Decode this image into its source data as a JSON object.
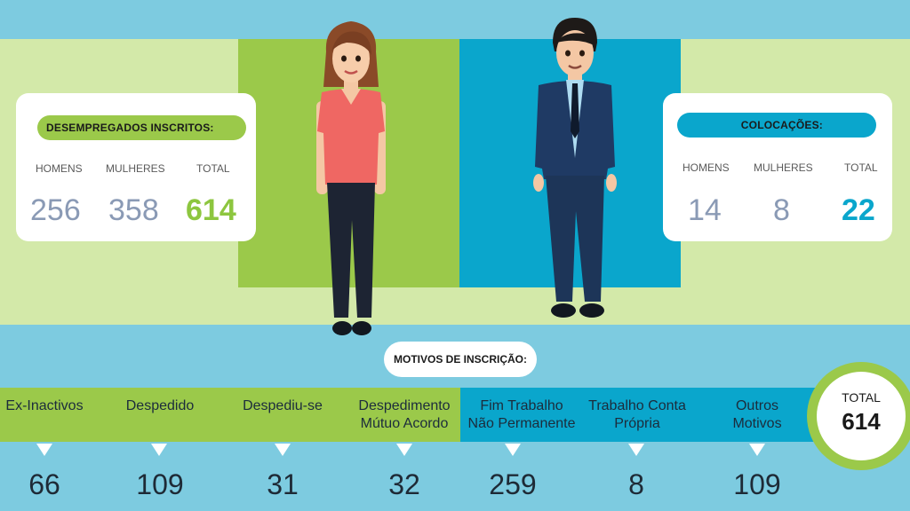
{
  "left_card": {
    "title": "DESEMPREGADOS INSCRITOS:",
    "labels": [
      "HOMENS",
      "MULHERES",
      "TOTAL"
    ],
    "values": [
      "256",
      "358",
      "614"
    ]
  },
  "right_card": {
    "title": "COLOCAÇÕES:",
    "labels": [
      "HOMENS",
      "MULHERES",
      "TOTAL"
    ],
    "values": [
      "14",
      "8",
      "22"
    ]
  },
  "motivos": {
    "title": "MOTIVOS DE INSCRIÇÃO:",
    "categories": [
      {
        "line1": "Ex-Inactivos",
        "line2": "",
        "value": "66"
      },
      {
        "line1": "Despedido",
        "line2": "",
        "value": "109"
      },
      {
        "line1": "Despediu-se",
        "line2": "",
        "value": "31"
      },
      {
        "line1": "Despedimento",
        "line2": "Mútuo Acordo",
        "value": "32"
      },
      {
        "line1": "Fim Trabalho",
        "line2": "Não Permanente",
        "value": "259"
      },
      {
        "line1": "Trabalho Conta",
        "line2": "Própria",
        "value": "8"
      },
      {
        "line1": "Outros",
        "line2": "Motivos",
        "value": "109"
      }
    ],
    "total_label": "TOTAL",
    "total_value": "614"
  },
  "colors": {
    "green": "#9bc94a",
    "blue": "#0aa6cc",
    "light_green": "#d3e9a9",
    "light_blue": "#7dcbe0"
  }
}
